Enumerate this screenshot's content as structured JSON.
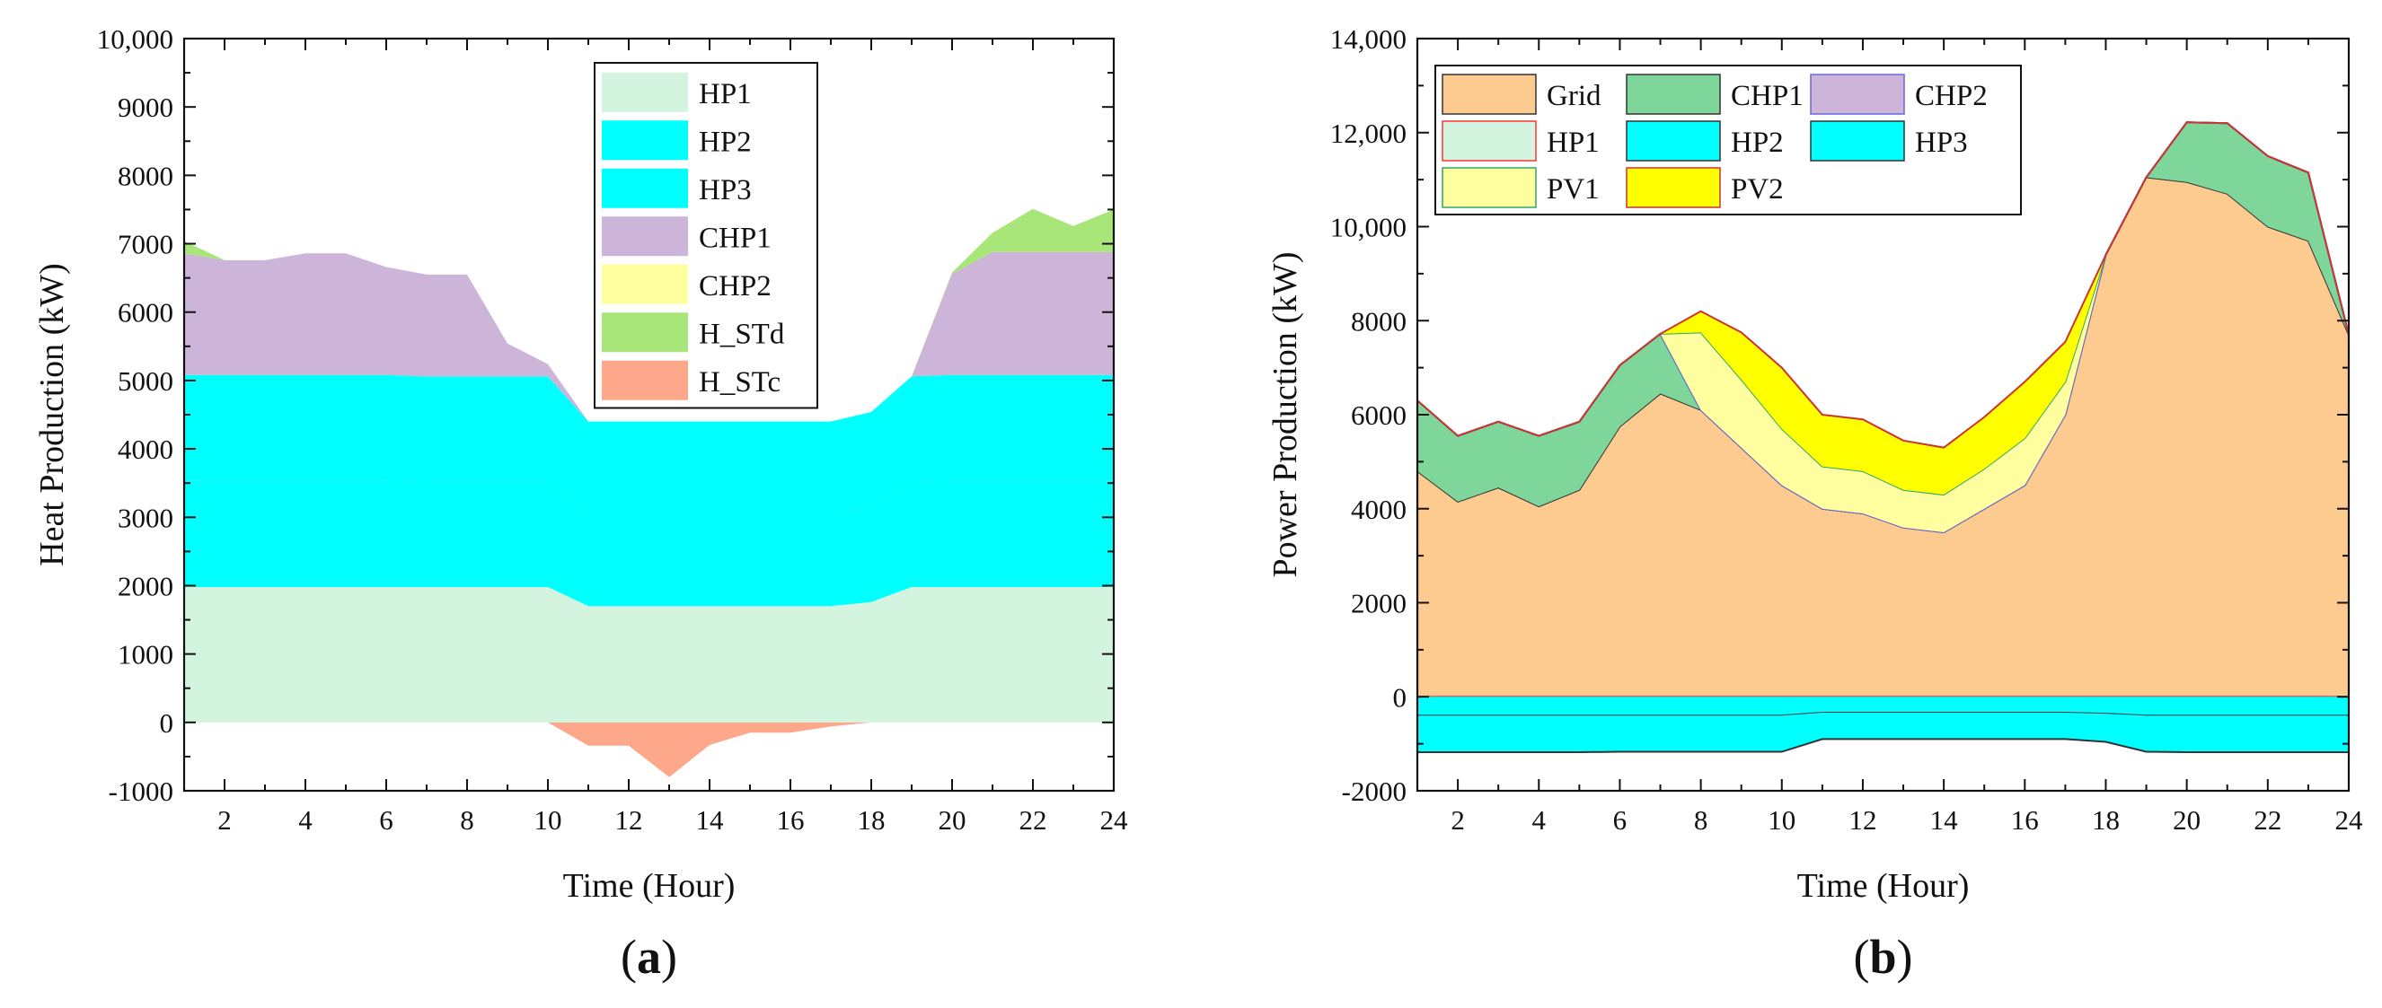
{
  "chart_data": [
    {
      "type": "area",
      "panel_label": "(a)",
      "panel_letter": "a",
      "xlabel": "Time (Hour)",
      "ylabel": "Heat Production (kW)",
      "xlim": [
        1,
        24
      ],
      "ylim": [
        -1000,
        10000
      ],
      "x_ticks": [
        2,
        4,
        6,
        8,
        10,
        12,
        14,
        16,
        18,
        20,
        22,
        24
      ],
      "y_ticks": [
        -1000,
        0,
        1000,
        2000,
        3000,
        4000,
        5000,
        6000,
        7000,
        8000,
        9000,
        10000
      ],
      "y_tick_labels": [
        "-1000",
        "0",
        "1000",
        "2000",
        "3000",
        "4000",
        "5000",
        "6000",
        "7000",
        "8000",
        "9000",
        "10,000"
      ],
      "legend_position": "top-center",
      "x": [
        1,
        2,
        3,
        4,
        5,
        6,
        7,
        8,
        9,
        10,
        11,
        12,
        13,
        14,
        15,
        16,
        17,
        18,
        19,
        20,
        21,
        22,
        23,
        24
      ],
      "series": [
        {
          "name": "HP1",
          "stack": "positive",
          "fill": "#d3f5df",
          "stroke": "none",
          "values": [
            1980,
            1980,
            1980,
            1980,
            1980,
            1980,
            1980,
            1980,
            1980,
            1980,
            1700,
            1700,
            1700,
            1700,
            1700,
            1700,
            1700,
            1760,
            1980,
            1980,
            1980,
            1980,
            1980,
            1980
          ]
        },
        {
          "name": "HP2",
          "stack": "positive",
          "fill": "#00ffff",
          "stroke": "none",
          "values": [
            1550,
            1550,
            1550,
            1550,
            1550,
            1550,
            1540,
            1540,
            1540,
            1540,
            1350,
            1350,
            1350,
            1350,
            1350,
            1350,
            1350,
            1390,
            1540,
            1550,
            1550,
            1550,
            1550,
            1550
          ]
        },
        {
          "name": "HP3",
          "stack": "positive",
          "fill": "#00ffff",
          "stroke": "none",
          "values": [
            1550,
            1550,
            1550,
            1550,
            1550,
            1550,
            1540,
            1540,
            1540,
            1540,
            1350,
            1350,
            1350,
            1350,
            1350,
            1350,
            1350,
            1390,
            1540,
            1550,
            1550,
            1550,
            1550,
            1550
          ]
        },
        {
          "name": "CHP1",
          "stack": "positive",
          "fill": "#ccb5d8",
          "stroke": "none",
          "values": [
            1780,
            1680,
            1680,
            1780,
            1780,
            1580,
            1490,
            1490,
            480,
            180,
            0,
            0,
            0,
            0,
            0,
            0,
            0,
            0,
            0,
            1480,
            1800,
            1800,
            1800,
            1800
          ]
        },
        {
          "name": "CHP2",
          "stack": "positive",
          "fill": "#ffffa0",
          "stroke": "none",
          "values": [
            0,
            0,
            0,
            0,
            0,
            0,
            0,
            0,
            0,
            0,
            0,
            0,
            0,
            0,
            0,
            0,
            0,
            0,
            0,
            0,
            0,
            0,
            0,
            0
          ]
        },
        {
          "name": "H_STd",
          "stack": "positive",
          "fill": "#a8e67a",
          "stroke": "none",
          "values": [
            180,
            0,
            0,
            0,
            0,
            0,
            0,
            0,
            0,
            0,
            0,
            0,
            0,
            0,
            0,
            0,
            0,
            0,
            0,
            20,
            280,
            630,
            380,
            620
          ]
        },
        {
          "name": "H_STc",
          "stack": "negative",
          "fill": "#fda88a",
          "stroke": "none",
          "values": [
            0,
            0,
            0,
            0,
            0,
            0,
            0,
            0,
            0,
            0,
            -340,
            -340,
            -800,
            -330,
            -150,
            -150,
            -60,
            0,
            0,
            0,
            0,
            0,
            0,
            0
          ]
        }
      ]
    },
    {
      "type": "area",
      "panel_label": "(b)",
      "panel_letter": "b",
      "xlabel": "Time (Hour)",
      "ylabel": "Power Production (kW)",
      "xlim": [
        1,
        24
      ],
      "ylim": [
        -2000,
        14000
      ],
      "x_ticks": [
        2,
        4,
        6,
        8,
        10,
        12,
        14,
        16,
        18,
        20,
        22,
        24
      ],
      "y_ticks": [
        -2000,
        0,
        2000,
        4000,
        6000,
        8000,
        10000,
        12000,
        14000
      ],
      "y_tick_labels": [
        "-2000",
        "0",
        "2000",
        "4000",
        "6000",
        "8000",
        "10,000",
        "12,000",
        "14,000"
      ],
      "legend_position": "top-left",
      "x": [
        1,
        2,
        3,
        4,
        5,
        6,
        7,
        8,
        9,
        10,
        11,
        12,
        13,
        14,
        15,
        16,
        17,
        18,
        19,
        20,
        21,
        22,
        23,
        24
      ],
      "series": [
        {
          "name": "Grid",
          "stack": "positive",
          "fill": "#fdcb8f",
          "stroke": "#333333",
          "values": [
            4800,
            4150,
            4450,
            4050,
            4400,
            5750,
            6450,
            6100,
            5300,
            4500,
            4000,
            3900,
            3600,
            3500,
            4000,
            4500,
            6000,
            9400,
            11050,
            10950,
            10700,
            10000,
            9700,
            7700
          ]
        },
        {
          "name": "CHP1",
          "stack": "positive",
          "fill": "#7fd69a",
          "stroke": "#333333",
          "values": [
            1500,
            1400,
            1400,
            1500,
            1450,
            1300,
            1270,
            0,
            0,
            0,
            0,
            0,
            0,
            0,
            0,
            0,
            0,
            0,
            0,
            1270,
            1500,
            1500,
            1450,
            0
          ]
        },
        {
          "name": "CHP2",
          "stack": "positive",
          "fill": "#ccb5d8",
          "stroke": "#6666dd",
          "values": [
            0,
            0,
            0,
            0,
            0,
            0,
            0,
            0,
            0,
            0,
            0,
            0,
            0,
            0,
            0,
            0,
            0,
            0,
            0,
            0,
            0,
            0,
            0,
            0
          ]
        },
        {
          "name": "HP1",
          "stack": "negative",
          "fill": "#d3f5df",
          "stroke": "#ff3333",
          "values": [
            0,
            0,
            0,
            0,
            0,
            0,
            0,
            0,
            0,
            0,
            0,
            0,
            0,
            0,
            0,
            0,
            0,
            0,
            0,
            0,
            0,
            0,
            0,
            0
          ]
        },
        {
          "name": "HP2",
          "stack": "negative",
          "fill": "#00ffff",
          "stroke": "#333333",
          "values": [
            -400,
            -400,
            -400,
            -400,
            -400,
            -400,
            -400,
            -400,
            -400,
            -400,
            -340,
            -340,
            -340,
            -340,
            -340,
            -340,
            -340,
            -360,
            -400,
            -400,
            -400,
            -400,
            -400,
            -400
          ]
        },
        {
          "name": "HP3",
          "stack": "negative",
          "fill": "#00ffff",
          "stroke": "#333333",
          "values": [
            -780,
            -780,
            -780,
            -780,
            -780,
            -770,
            -770,
            -770,
            -770,
            -770,
            -560,
            -560,
            -560,
            -560,
            -560,
            -560,
            -560,
            -600,
            -770,
            -780,
            -780,
            -780,
            -780,
            -780
          ]
        },
        {
          "name": "PV1",
          "stack": "positive",
          "fill": "#ffffa0",
          "stroke": "#2fa56a",
          "values": [
            0,
            0,
            0,
            0,
            0,
            0,
            0,
            1650,
            1450,
            1200,
            900,
            900,
            800,
            800,
            850,
            1000,
            700,
            0,
            0,
            0,
            0,
            0,
            0,
            0
          ]
        },
        {
          "name": "PV2",
          "stack": "positive",
          "fill": "#ffff00",
          "stroke": "#cc3333",
          "values": [
            0,
            0,
            0,
            0,
            0,
            0,
            0,
            450,
            1000,
            1300,
            1100,
            1100,
            1050,
            1000,
            1100,
            1200,
            850,
            0,
            0,
            0,
            0,
            0,
            0,
            0
          ]
        }
      ]
    }
  ]
}
